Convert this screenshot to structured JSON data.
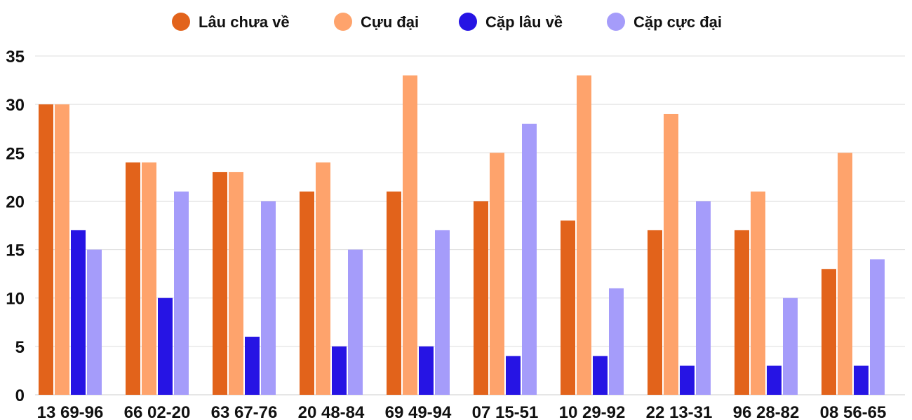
{
  "chart_data": {
    "type": "bar",
    "categories": [
      "13 69-96",
      "66 02-20",
      "63 67-76",
      "20 48-84",
      "69 49-94",
      "07 15-51",
      "10 29-92",
      "22 13-31",
      "96 28-82",
      "08 56-65"
    ],
    "series": [
      {
        "name": "Lâu chưa về",
        "color": "#e2631b",
        "values": [
          30,
          24,
          23,
          21,
          21,
          20,
          18,
          17,
          17,
          13
        ]
      },
      {
        "name": "Cựu đại",
        "color": "#fea36c",
        "values": [
          30,
          24,
          23,
          24,
          33,
          25,
          33,
          29,
          21,
          25
        ]
      },
      {
        "name": "Cặp lâu về",
        "color": "#2614e4",
        "values": [
          17,
          10,
          6,
          5,
          5,
          4,
          4,
          3,
          3,
          3
        ]
      },
      {
        "name": "Cặp cực đại",
        "color": "#a59cfa",
        "values": [
          15,
          21,
          20,
          15,
          17,
          28,
          11,
          20,
          10,
          14
        ]
      }
    ],
    "yticks": [
      "0",
      "5",
      "10",
      "15",
      "20",
      "25",
      "30",
      "35"
    ],
    "ylim": [
      0,
      35
    ],
    "grid": true,
    "legend_position": "top"
  }
}
